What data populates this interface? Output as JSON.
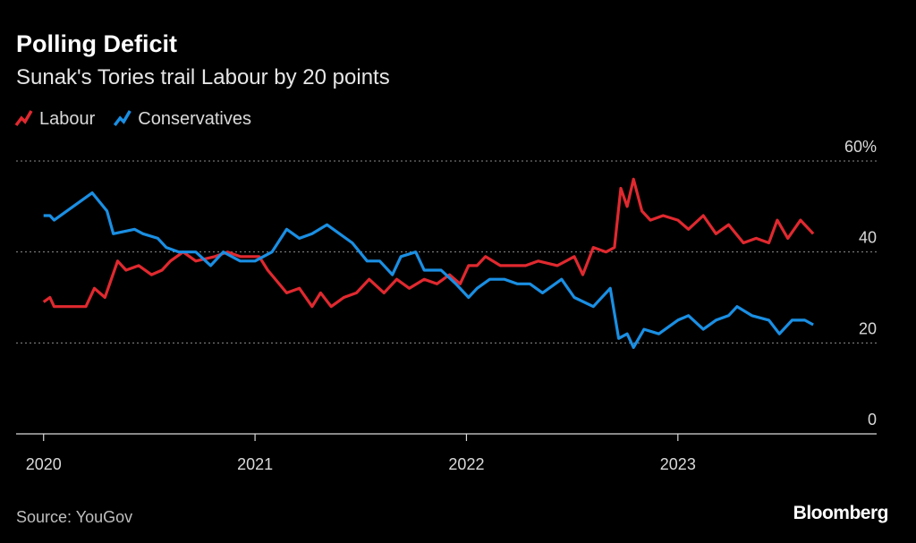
{
  "chart_data": {
    "type": "line",
    "title": "Polling Deficit",
    "subtitle": "Sunak's Tories trail Labour by 20 points",
    "source": "Source: YouGov",
    "logo": "Bloomberg",
    "xlim": [
      2019.87,
      2023.94
    ],
    "xticks": [
      2020,
      2021,
      2022,
      2023
    ],
    "ylim": [
      0,
      60
    ],
    "yticks": [
      0,
      20,
      40,
      {
        "value": 60,
        "label": "60%"
      }
    ],
    "grid": true,
    "legend": "top-left",
    "series": [
      {
        "name": "Labour",
        "color": "#e0292f",
        "x": [
          2020.0,
          2020.03,
          2020.05,
          2020.2,
          2020.24,
          2020.29,
          2020.32,
          2020.35,
          2020.39,
          2020.45,
          2020.51,
          2020.56,
          2020.6,
          2020.66,
          2020.72,
          2020.81,
          2020.87,
          2020.93,
          2021.02,
          2021.06,
          2021.15,
          2021.21,
          2021.27,
          2021.31,
          2021.36,
          2021.42,
          2021.48,
          2021.54,
          2021.61,
          2021.67,
          2021.73,
          2021.8,
          2021.86,
          2021.92,
          2021.97,
          2022.01,
          2022.05,
          2022.09,
          2022.16,
          2022.22,
          2022.28,
          2022.34,
          2022.43,
          2022.51,
          2022.55,
          2022.6,
          2022.66,
          2022.7,
          2022.73,
          2022.76,
          2022.79,
          2022.83,
          2022.87,
          2022.93,
          2023.0,
          2023.05,
          2023.12,
          2023.18,
          2023.24,
          2023.31,
          2023.37,
          2023.43,
          2023.47,
          2023.52,
          2023.58,
          2023.64
        ],
        "values": [
          29,
          30,
          28,
          28,
          32,
          30,
          34,
          38,
          36,
          37,
          35,
          36,
          38,
          40,
          38,
          39,
          40,
          39,
          39,
          36,
          31,
          32,
          28,
          31,
          28,
          30,
          31,
          34,
          31,
          34,
          32,
          34,
          33,
          35,
          33,
          37,
          37,
          39,
          37,
          37,
          37,
          38,
          37,
          39,
          35,
          41,
          40,
          41,
          54,
          50,
          56,
          49,
          47,
          48,
          47,
          45,
          48,
          44,
          46,
          42,
          43,
          42,
          47,
          43,
          47,
          44
        ]
      },
      {
        "name": "Conservatives",
        "color": "#1a8fe3",
        "x": [
          2020.0,
          2020.03,
          2020.05,
          2020.23,
          2020.3,
          2020.33,
          2020.43,
          2020.47,
          2020.54,
          2020.58,
          2020.64,
          2020.72,
          2020.79,
          2020.85,
          2020.93,
          2021.0,
          2021.08,
          2021.15,
          2021.21,
          2021.27,
          2021.34,
          2021.4,
          2021.46,
          2021.53,
          2021.59,
          2021.65,
          2021.69,
          2021.76,
          2021.8,
          2021.88,
          2021.95,
          2022.01,
          2022.05,
          2022.11,
          2022.18,
          2022.24,
          2022.3,
          2022.36,
          2022.45,
          2022.51,
          2022.6,
          2022.68,
          2022.72,
          2022.76,
          2022.79,
          2022.84,
          2022.91,
          2023.0,
          2023.05,
          2023.12,
          2023.18,
          2023.24,
          2023.28,
          2023.35,
          2023.43,
          2023.48,
          2023.54,
          2023.6,
          2023.64
        ],
        "values": [
          48,
          48,
          47,
          53,
          49,
          44,
          45,
          44,
          43,
          41,
          40,
          40,
          37,
          40,
          38,
          38,
          40,
          45,
          43,
          44,
          46,
          44,
          42,
          38,
          38,
          35,
          39,
          40,
          36,
          36,
          33,
          30,
          32,
          34,
          34,
          33,
          33,
          31,
          34,
          30,
          28,
          32,
          21,
          22,
          19,
          23,
          22,
          25,
          26,
          23,
          25,
          26,
          28,
          26,
          25,
          22,
          25,
          25,
          24
        ]
      }
    ]
  }
}
